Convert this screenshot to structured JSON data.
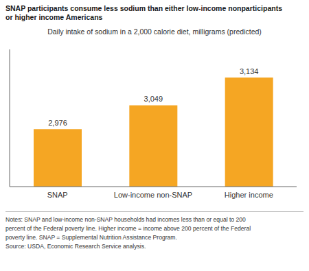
{
  "chart_data": {
    "type": "bar",
    "title": "SNAP participants consume less sodium than either low-income nonparticipants\nor higher income Americans",
    "subtitle": "Daily intake of sodium in a 2,000 calorie diet, milligrams (predicted)",
    "categories": [
      "SNAP",
      "Low-income non-SNAP",
      "Higher income"
    ],
    "values": [
      2976,
      3049,
      3134
    ],
    "value_labels": [
      "2,976",
      "3,049",
      "3,134"
    ],
    "data_labels": true,
    "color": "#F5A623",
    "ylim": [
      2800,
      3220
    ],
    "tick_labels": "x",
    "grid": false,
    "notes": [
      "Notes: SNAP and low-income non-SNAP households had incomes less than or equal to 200",
      "percent of the Federal poverty line. Higher income = income above 200 percent of the Federal",
      "poverty line. SNAP = Supplemental Nutrition Assistance Program.",
      "Source: USDA, Economic Research Service analysis."
    ]
  }
}
